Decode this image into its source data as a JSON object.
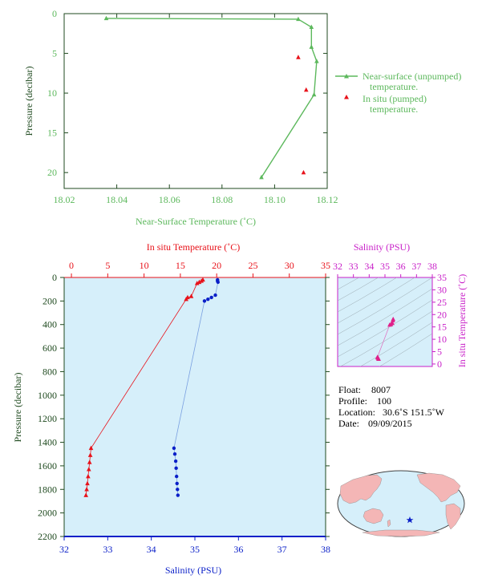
{
  "colors": {
    "green": "#5cb85c",
    "red": "#e8121a",
    "blue": "#0a1fc8",
    "magenta": "#c81fc8",
    "axis_dark": "#1f4a1f",
    "panel_bg": "#d6effa"
  },
  "top_chart": {
    "type": "line",
    "xlabel": "Near-Surface Temperature (˚C)",
    "ylabel": "Pressure (decibar)",
    "xlim": [
      18.02,
      18.12
    ],
    "ylim": [
      22,
      0
    ],
    "xticks": [
      "18.02",
      "18.04",
      "18.06",
      "18.08",
      "18.10",
      "18.12"
    ],
    "yticks": [
      "0",
      "5",
      "10",
      "15",
      "20"
    ],
    "legend": [
      {
        "name_line1": "Near-surface (unpumped)",
        "name_line2": "temperature."
      },
      {
        "name_line1": "In situ (pumped)",
        "name_line2": "temperature."
      }
    ],
    "unpumped": {
      "x": [
        18.036,
        18.109,
        18.114,
        18.114,
        18.116,
        18.115,
        18.095
      ],
      "y": [
        0.6,
        0.7,
        1.7,
        4.2,
        6.0,
        10.2,
        20.6
      ]
    },
    "pumped": {
      "x": [
        18.109,
        18.112,
        18.111
      ],
      "y": [
        5.5,
        9.6,
        20.0
      ]
    }
  },
  "main_chart": {
    "top_axis_label": "In situ Temperature (˚C)",
    "bottom_axis_label": "Salinity (PSU)",
    "ylabel": "Pressure (decibar)",
    "temp_ticks": [
      "0",
      "5",
      "10",
      "15",
      "20",
      "25",
      "30",
      "35"
    ],
    "sal_ticks": [
      "32",
      "33",
      "34",
      "35",
      "36",
      "37",
      "38"
    ],
    "pres_ticks": [
      "0",
      "200",
      "400",
      "600",
      "800",
      "1000",
      "1200",
      "1400",
      "1600",
      "1800",
      "2000",
      "2200"
    ],
    "temp_lim": [
      -1,
      35
    ],
    "sal_lim": [
      32,
      38
    ],
    "pres_lim": [
      0,
      2200
    ],
    "temperature": {
      "x": [
        18.1,
        17.9,
        17.6,
        17.3,
        16.5,
        16.0,
        15.8,
        2.7,
        2.6,
        2.5,
        2.4,
        2.3,
        2.2,
        2.1,
        2.0
      ],
      "y": [
        20,
        30,
        40,
        50,
        160,
        170,
        185,
        1450,
        1510,
        1570,
        1630,
        1690,
        1750,
        1800,
        1850
      ]
    },
    "salinity": {
      "x": [
        35.52,
        35.52,
        35.53,
        35.47,
        35.38,
        35.3,
        35.22,
        34.52,
        34.54,
        34.56,
        34.57,
        34.58,
        34.59,
        34.6,
        34.61
      ],
      "y": [
        20,
        30,
        40,
        150,
        170,
        185,
        200,
        1450,
        1500,
        1560,
        1620,
        1690,
        1750,
        1800,
        1850
      ]
    }
  },
  "ts_chart": {
    "top_label": "Salinity (PSU)",
    "right_label": "In situ Temperature (˚C)",
    "sal_ticks": [
      "32",
      "33",
      "34",
      "35",
      "36",
      "37",
      "38"
    ],
    "temp_ticks": [
      "0",
      "5",
      "10",
      "15",
      "20",
      "25",
      "30",
      "35"
    ],
    "sal_lim": [
      32,
      38
    ],
    "temp_lim": [
      -1,
      35
    ],
    "points": {
      "sal": [
        35.52,
        35.5,
        35.47,
        35.38,
        35.3,
        34.52,
        34.55,
        34.58,
        34.6
      ],
      "temp": [
        18.1,
        17.6,
        16.5,
        16.0,
        15.8,
        2.7,
        2.5,
        2.2,
        2.0
      ]
    }
  },
  "info": {
    "float_label": "Float:",
    "float_value": "8007",
    "profile_label": "Profile:",
    "profile_value": "100",
    "location_label": "Location:",
    "location_value": "30.6˚S  151.5˚W",
    "date_label": "Date:",
    "date_value": "09/09/2015"
  },
  "map": {
    "ocean_color": "#d6effa",
    "land_color": "#f4b6b6",
    "marker_icon": "star-icon"
  }
}
